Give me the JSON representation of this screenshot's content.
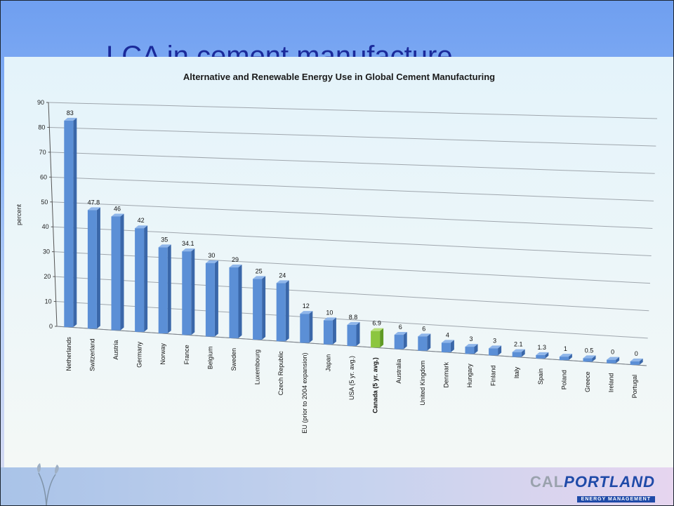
{
  "slide": {
    "title": "LCA in cement manufacture"
  },
  "chart_data": {
    "type": "bar",
    "title": "Alternative and Renewable Energy Use in Global Cement Manufacturing",
    "xlabel": "",
    "ylabel": "percent",
    "ylim": [
      0,
      90
    ],
    "yticks": [
      0,
      10,
      20,
      30,
      40,
      50,
      60,
      70,
      80,
      90
    ],
    "grid": true,
    "categories": [
      "Netherlands",
      "Switzerland",
      "Austria",
      "Germany",
      "Norway",
      "France",
      "Belgium",
      "Sweden",
      "Luxembourg",
      "Czech Republic",
      "EU (prior to 2004 expansion)",
      "Japan",
      "USA (5 yr. avg.)",
      "Canada (5 yr. avg.)",
      "Australia",
      "United Kingdom",
      "Denmark",
      "Hungary",
      "Finland",
      "Italy",
      "Spain",
      "Poland",
      "Greece",
      "Ireland",
      "Portugal"
    ],
    "values": [
      83,
      47.8,
      46,
      42,
      35,
      34.1,
      30,
      29,
      25,
      24,
      12,
      10,
      8.8,
      6.9,
      6,
      6,
      4,
      3,
      3,
      2.1,
      1.3,
      1,
      0.5,
      0,
      0
    ],
    "value_labels": [
      "83",
      "47.8",
      "46",
      "42",
      "35",
      "34.1",
      "30",
      "29",
      "25",
      "24",
      "12",
      "10",
      "8.8",
      "6.9",
      "6",
      "6",
      "4",
      "3",
      "3",
      "2.1",
      "1.3",
      "1",
      "0.5",
      "0",
      "0"
    ],
    "highlight_index": 13,
    "bar_color": "#5b8fd6",
    "highlight_color": "#8cc63f"
  },
  "logo": {
    "cal": "CAL",
    "portland": "PORTLAND",
    "sub": "ENERGY MANAGEMENT"
  }
}
